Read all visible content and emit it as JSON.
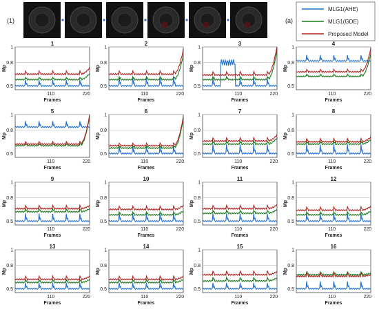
{
  "figure": {
    "row_label": "(1)",
    "legend_label": "(a)",
    "legend": [
      {
        "name": "MLG1(AHE)",
        "color": "#1f6fd1"
      },
      {
        "name": "MLG1(GDE)",
        "color": "#1e7a1e"
      },
      {
        "name": "Proposed Model",
        "color": "#b22222"
      }
    ],
    "thumbnails": 6
  },
  "chart_data": [
    {
      "type": "line",
      "title": "1",
      "xlabel": "Frames",
      "ylabel": "Mp",
      "xticks": [
        "110",
        "220"
      ],
      "yticks": [
        "0.5",
        "0.8",
        "1"
      ],
      "ylim": [
        0.45,
        1.0
      ],
      "xlim": [
        0,
        230
      ],
      "spike_period": 42,
      "series": [
        {
          "name": "MLG1(AHE)",
          "base": 0.5,
          "spike": 0.08
        },
        {
          "name": "MLG1(GDE)",
          "base": 0.58,
          "spike": 0.04
        },
        {
          "name": "Proposed Model",
          "base": 0.65,
          "spike": 0.05
        }
      ],
      "end_rise": 0.08
    },
    {
      "type": "line",
      "title": "2",
      "xlabel": "Frames",
      "ylabel": "Mp",
      "xticks": [
        "110",
        "220"
      ],
      "yticks": [
        "0.5",
        "0.8",
        "1"
      ],
      "ylim": [
        0.45,
        1.0
      ],
      "xlim": [
        0,
        230
      ],
      "spike_period": 42,
      "series": [
        {
          "name": "MLG1(AHE)",
          "base": 0.5,
          "spike": 0.12
        },
        {
          "name": "MLG1(GDE)",
          "base": 0.58,
          "spike": 0.05
        },
        {
          "name": "Proposed Model",
          "base": 0.65,
          "spike": 0.05
        }
      ],
      "end_rise": 0.32
    },
    {
      "type": "line",
      "title": "3",
      "xlabel": "Frames",
      "ylabel": "Mp",
      "xticks": [
        "110",
        "220"
      ],
      "yticks": [
        "0.5",
        "0.8",
        "1"
      ],
      "ylim": [
        0.45,
        1.0
      ],
      "xlim": [
        0,
        230
      ],
      "spike_period": 42,
      "series": [
        {
          "name": "MLG1(AHE)",
          "base": 0.5,
          "spike": 0.1,
          "jump": [
            [
              55,
              100,
              0.8
            ]
          ]
        },
        {
          "name": "MLG1(GDE)",
          "base": 0.58,
          "spike": 0.05
        },
        {
          "name": "Proposed Model",
          "base": 0.64,
          "spike": 0.05
        }
      ],
      "end_rise": 0.38
    },
    {
      "type": "line",
      "title": "4",
      "xlabel": "Frames",
      "ylabel": "Mp",
      "xticks": [
        "110",
        "220"
      ],
      "yticks": [
        "0.5",
        "0.8",
        "1"
      ],
      "ylim": [
        0.45,
        1.0
      ],
      "xlim": [
        0,
        230
      ],
      "spike_period": 42,
      "series": [
        {
          "name": "MLG1(AHE)",
          "base": 0.82,
          "spike": 0.08
        },
        {
          "name": "MLG1(GDE)",
          "base": 0.62,
          "spike": 0.04
        },
        {
          "name": "Proposed Model",
          "base": 0.68,
          "spike": 0.04
        }
      ],
      "end_rise": 0.3
    },
    {
      "type": "line",
      "title": "5",
      "xlabel": "Frames",
      "ylabel": "Mp",
      "xticks": [
        "110",
        "220"
      ],
      "yticks": [
        "0.5",
        "0.8",
        "1"
      ],
      "ylim": [
        0.45,
        1.0
      ],
      "xlim": [
        0,
        230
      ],
      "spike_period": 42,
      "series": [
        {
          "name": "MLG1(AHE)",
          "base": 0.84,
          "spike": 0.08
        },
        {
          "name": "MLG1(GDE)",
          "base": 0.6,
          "spike": 0.04
        },
        {
          "name": "Proposed Model",
          "base": 0.62,
          "spike": 0.04
        }
      ],
      "end_rise": 0.38
    },
    {
      "type": "line",
      "title": "6",
      "xlabel": "Frames",
      "ylabel": "Mp",
      "xticks": [
        "110",
        "220"
      ],
      "yticks": [
        "0.5",
        "0.8",
        "1"
      ],
      "ylim": [
        0.45,
        1.0
      ],
      "xlim": [
        0,
        230
      ],
      "spike_period": 42,
      "series": [
        {
          "name": "MLG1(AHE)",
          "base": 0.5,
          "spike": 0.1
        },
        {
          "name": "MLG1(GDE)",
          "base": 0.57,
          "spike": 0.04
        },
        {
          "name": "Proposed Model",
          "base": 0.6,
          "spike": 0.04
        }
      ],
      "end_rise": 0.38
    },
    {
      "type": "line",
      "title": "7",
      "xlabel": "Frames",
      "ylabel": "Mp",
      "xticks": [
        "110",
        "220"
      ],
      "yticks": [
        "0.5",
        "0.8",
        "1"
      ],
      "ylim": [
        0.45,
        1.0
      ],
      "xlim": [
        0,
        230
      ],
      "spike_period": 42,
      "series": [
        {
          "name": "MLG1(AHE)",
          "base": 0.5,
          "spike": 0.12
        },
        {
          "name": "MLG1(GDE)",
          "base": 0.62,
          "spike": 0.05
        },
        {
          "name": "Proposed Model",
          "base": 0.66,
          "spike": 0.05
        }
      ],
      "end_rise": 0.08
    },
    {
      "type": "line",
      "title": "8",
      "xlabel": "Frames",
      "ylabel": "Mp",
      "xticks": [
        "110",
        "220"
      ],
      "yticks": [
        "0.5",
        "0.8",
        "1"
      ],
      "ylim": [
        0.45,
        1.0
      ],
      "xlim": [
        0,
        230
      ],
      "spike_period": 42,
      "series": [
        {
          "name": "MLG1(AHE)",
          "base": 0.5,
          "spike": 0.12
        },
        {
          "name": "MLG1(GDE)",
          "base": 0.62,
          "spike": 0.05
        },
        {
          "name": "Proposed Model",
          "base": 0.65,
          "spike": 0.05
        }
      ],
      "end_rise": 0.06
    },
    {
      "type": "line",
      "title": "9",
      "xlabel": "Frames",
      "ylabel": "Mp",
      "xticks": [
        "110",
        "220"
      ],
      "yticks": [
        "0.5",
        "0.8",
        "1"
      ],
      "ylim": [
        0.45,
        1.0
      ],
      "xlim": [
        0,
        230
      ],
      "spike_period": 42,
      "series": [
        {
          "name": "MLG1(AHE)",
          "base": 0.5,
          "spike": 0.1
        },
        {
          "name": "MLG1(GDE)",
          "base": 0.62,
          "spike": 0.05
        },
        {
          "name": "Proposed Model",
          "base": 0.66,
          "spike": 0.05
        }
      ],
      "end_rise": 0.04
    },
    {
      "type": "line",
      "title": "10",
      "xlabel": "Frames",
      "ylabel": "Mp",
      "xticks": [
        "110",
        "220"
      ],
      "yticks": [
        "0.5",
        "0.8",
        "1"
      ],
      "ylim": [
        0.45,
        1.0
      ],
      "xlim": [
        0,
        230
      ],
      "spike_period": 42,
      "series": [
        {
          "name": "MLG1(AHE)",
          "base": 0.5,
          "spike": 0.1
        },
        {
          "name": "MLG1(GDE)",
          "base": 0.58,
          "spike": 0.05
        },
        {
          "name": "Proposed Model",
          "base": 0.65,
          "spike": 0.05
        }
      ],
      "end_rise": 0.05
    },
    {
      "type": "line",
      "title": "11",
      "xlabel": "Frames",
      "ylabel": "Mp",
      "xticks": [
        "110",
        "220"
      ],
      "yticks": [
        "0.5",
        "0.8",
        "1"
      ],
      "ylim": [
        0.45,
        1.0
      ],
      "xlim": [
        0,
        230
      ],
      "spike_period": 42,
      "series": [
        {
          "name": "MLG1(AHE)",
          "base": 0.5,
          "spike": 0.1
        },
        {
          "name": "MLG1(GDE)",
          "base": 0.6,
          "spike": 0.05
        },
        {
          "name": "Proposed Model",
          "base": 0.66,
          "spike": 0.05
        }
      ],
      "end_rise": 0.05
    },
    {
      "type": "line",
      "title": "12",
      "xlabel": "Frames",
      "ylabel": "Mp",
      "xticks": [
        "110",
        "220"
      ],
      "yticks": [
        "0.5",
        "0.8",
        "1"
      ],
      "ylim": [
        0.45,
        1.0
      ],
      "xlim": [
        0,
        230
      ],
      "spike_period": 42,
      "series": [
        {
          "name": "MLG1(AHE)",
          "base": 0.5,
          "spike": 0.1
        },
        {
          "name": "MLG1(GDE)",
          "base": 0.58,
          "spike": 0.05
        },
        {
          "name": "Proposed Model",
          "base": 0.64,
          "spike": 0.05
        }
      ],
      "end_rise": 0.05
    },
    {
      "type": "line",
      "title": "13",
      "xlabel": "Frames",
      "ylabel": "Mp",
      "xticks": [
        "110",
        "220"
      ],
      "yticks": [
        "0.5",
        "0.8",
        "1"
      ],
      "ylim": [
        0.45,
        1.0
      ],
      "xlim": [
        0,
        230
      ],
      "spike_period": 42,
      "series": [
        {
          "name": "MLG1(AHE)",
          "base": 0.5,
          "spike": 0.08
        },
        {
          "name": "MLG1(GDE)",
          "base": 0.58,
          "spike": 0.05
        },
        {
          "name": "Proposed Model",
          "base": 0.62,
          "spike": 0.05
        }
      ],
      "end_rise": 0.04
    },
    {
      "type": "line",
      "title": "14",
      "xlabel": "Frames",
      "ylabel": "Mp",
      "xticks": [
        "110",
        "220"
      ],
      "yticks": [
        "0.5",
        "0.8",
        "1"
      ],
      "ylim": [
        0.45,
        1.0
      ],
      "xlim": [
        0,
        230
      ],
      "spike_period": 42,
      "series": [
        {
          "name": "MLG1(AHE)",
          "base": 0.5,
          "spike": 0.08
        },
        {
          "name": "MLG1(GDE)",
          "base": 0.58,
          "spike": 0.05
        },
        {
          "name": "Proposed Model",
          "base": 0.62,
          "spike": 0.05
        }
      ],
      "end_rise": 0.04
    },
    {
      "type": "line",
      "title": "15",
      "xlabel": "Frames",
      "ylabel": "Mp",
      "xticks": [
        "110",
        "220"
      ],
      "yticks": [
        "0.5",
        "0.8",
        "1"
      ],
      "ylim": [
        0.45,
        1.0
      ],
      "xlim": [
        0,
        230
      ],
      "spike_period": 42,
      "series": [
        {
          "name": "MLG1(AHE)",
          "base": 0.5,
          "spike": 0.08
        },
        {
          "name": "MLG1(GDE)",
          "base": 0.6,
          "spike": 0.06
        },
        {
          "name": "Proposed Model",
          "base": 0.68,
          "spike": 0.06
        }
      ],
      "end_rise": 0.04
    },
    {
      "type": "line",
      "title": "16",
      "xlabel": "Frames",
      "ylabel": "Mp",
      "xticks": [
        "110",
        "220"
      ],
      "yticks": [
        "0.5",
        "0.8",
        "1"
      ],
      "ylim": [
        0.45,
        1.0
      ],
      "xlim": [
        0,
        230
      ],
      "spike_period": 42,
      "series": [
        {
          "name": "MLG1(AHE)",
          "base": 0.5,
          "spike": 0.1
        },
        {
          "name": "MLG1(GDE)",
          "base": 0.68,
          "spike": 0.05
        },
        {
          "name": "Proposed Model",
          "base": 0.66,
          "spike": 0.05
        }
      ],
      "end_rise": 0.02
    }
  ]
}
